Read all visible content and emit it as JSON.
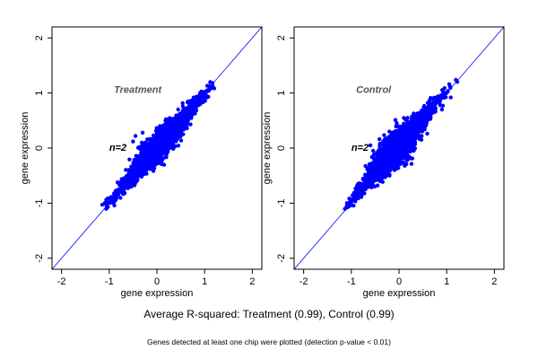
{
  "summary": "Average R-squared: Treatment (0.99), Control (0.99)",
  "footnote": "Genes detected at least one chip were plotted (detection p-value < 0.01)",
  "colors": {
    "points": "#0000ff",
    "diagonal": "#0000ff",
    "frame": "#000000"
  },
  "chart_data": [
    {
      "type": "scatter",
      "panel_label": "Treatment",
      "n_label": "n=2",
      "xlabel": "gene expression",
      "ylabel": "gene expression",
      "xlim": [
        -2.2,
        2.2
      ],
      "ylim": [
        -2.2,
        2.2
      ],
      "xticks": [
        "-2",
        "-1",
        "0",
        "1",
        "2"
      ],
      "yticks": [
        "-2",
        "-1",
        "0",
        "1",
        "2"
      ],
      "grid": false,
      "reference_line": "y = x",
      "r_squared": 0.99,
      "cloud": {
        "x_range": [
          -1.1,
          1.2
        ],
        "center": [
          0.05,
          0.05
        ],
        "spread": 0.06
      },
      "outliers": [
        {
          "x": -0.5,
          "y": 0.12
        },
        {
          "x": -0.45,
          "y": 0.22
        },
        {
          "x": -0.3,
          "y": 0.28
        },
        {
          "x": -0.1,
          "y": 0.0
        },
        {
          "x": 0.87,
          "y": 0.78
        }
      ]
    },
    {
      "type": "scatter",
      "panel_label": "Control",
      "n_label": "n=2",
      "xlabel": "gene expression",
      "ylabel": "gene expression",
      "xlim": [
        -2.2,
        2.2
      ],
      "ylim": [
        -2.2,
        2.2
      ],
      "xticks": [
        "-2",
        "-1",
        "0",
        "1",
        "2"
      ],
      "yticks": [
        "-2",
        "-1",
        "0",
        "1",
        "2"
      ],
      "grid": false,
      "reference_line": "y = x",
      "r_squared": 0.99,
      "cloud": {
        "x_range": [
          -1.15,
          1.2
        ],
        "center": [
          -0.05,
          0.0
        ],
        "spread": 0.08
      },
      "outliers": [
        {
          "x": -0.6,
          "y": 0.05
        },
        {
          "x": -0.4,
          "y": 0.08
        },
        {
          "x": -0.2,
          "y": 0.3
        },
        {
          "x": 0.9,
          "y": 0.7
        }
      ]
    }
  ]
}
